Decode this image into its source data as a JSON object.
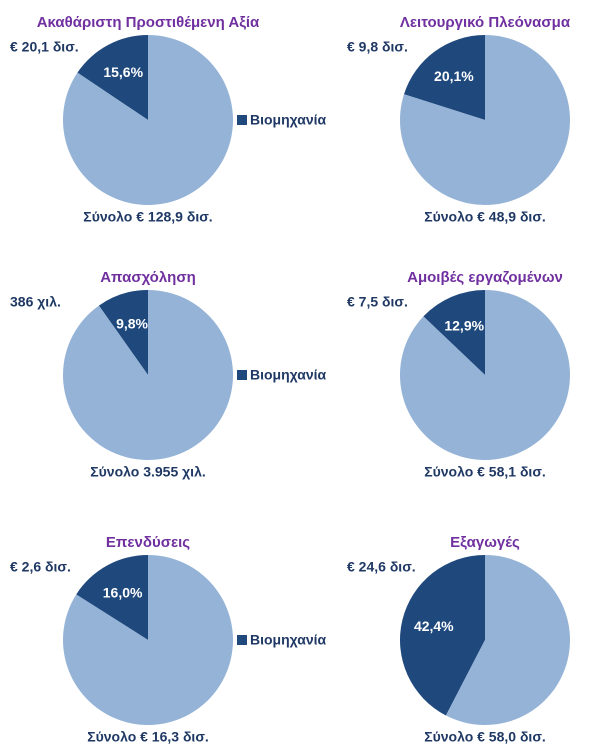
{
  "chart_data": [
    {
      "type": "pie",
      "title": "Ακαθάριστη Προστιθέμενη Αξία",
      "annotation": "€ 20,1 δισ.",
      "total": "Σύνολο € 128,9 δισ.",
      "categories": [
        "Βιομηχανία",
        null
      ],
      "values": [
        15.6,
        84.4
      ],
      "value_labels": [
        "15,6%",
        null
      ],
      "colors": [
        "#1f497d",
        "#95b3d7"
      ],
      "legend": true
    },
    {
      "type": "pie",
      "title": "Λειτουργικό Πλεόνασμα",
      "annotation": "€ 9,8 δισ.",
      "total": "Σύνολο € 48,9 δισ.",
      "categories": [
        null,
        null
      ],
      "values": [
        20.1,
        79.9
      ],
      "value_labels": [
        "20,1%",
        null
      ],
      "colors": [
        "#1f497d",
        "#95b3d7"
      ],
      "legend": false
    },
    {
      "type": "pie",
      "title": "Απασχόληση",
      "annotation": "386 χιλ.",
      "total": "Σύνολο 3.955 χιλ.",
      "categories": [
        "Βιομηχανία",
        null
      ],
      "values": [
        9.8,
        90.2
      ],
      "value_labels": [
        "9,8%",
        null
      ],
      "colors": [
        "#1f497d",
        "#95b3d7"
      ],
      "legend": true
    },
    {
      "type": "pie",
      "title": "Αμοιβές εργαζομένων",
      "annotation": "€ 7,5 δισ.",
      "total": "Σύνολο € 58,1 δισ.",
      "categories": [
        null,
        null
      ],
      "values": [
        12.9,
        87.1
      ],
      "value_labels": [
        "12,9%",
        null
      ],
      "colors": [
        "#1f497d",
        "#95b3d7"
      ],
      "legend": false
    },
    {
      "type": "pie",
      "title": "Επενδύσεις",
      "annotation": "€ 2,6 δισ.",
      "total": "Σύνολο € 16,3 δισ.",
      "categories": [
        "Βιομηχανία",
        null
      ],
      "values": [
        16.0,
        84.0
      ],
      "value_labels": [
        "16,0%",
        null
      ],
      "colors": [
        "#1f497d",
        "#95b3d7"
      ],
      "legend": true
    },
    {
      "type": "pie",
      "title": "Εξαγωγές",
      "annotation": "€ 24,6 δισ.",
      "total": "Σύνολο € 58,0 δισ.",
      "categories": [
        null,
        null
      ],
      "values": [
        42.4,
        57.6
      ],
      "value_labels": [
        "42,4%",
        null
      ],
      "colors": [
        "#1f497d",
        "#95b3d7"
      ],
      "legend": false
    }
  ]
}
